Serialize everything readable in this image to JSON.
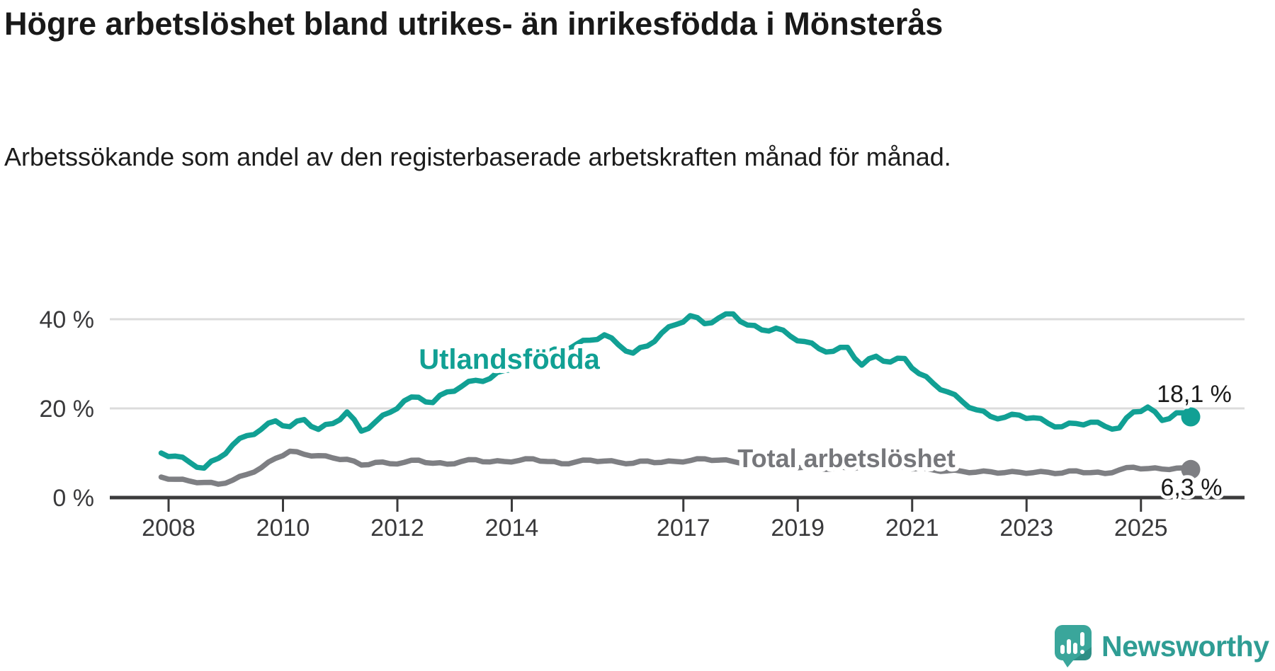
{
  "header": {
    "title": "Högre arbetslöshet bland utrikes- än inrikesfödda i Mönsterås",
    "subtitle": "Arbetssökande som andel av den registerbaserade arbetskraften månad för månad."
  },
  "chart_data": {
    "type": "line",
    "x_start": 2007.87,
    "x_step": 0.25,
    "xlim": [
      2007.6,
      2026.2
    ],
    "ylim": [
      0,
      43
    ],
    "grid": "horizontal",
    "x_ticks": [
      {
        "x": 2008,
        "label": "2008"
      },
      {
        "x": 2010,
        "label": "2010"
      },
      {
        "x": 2012,
        "label": "2012"
      },
      {
        "x": 2014,
        "label": "2014"
      },
      {
        "x": 2017,
        "label": "2017"
      },
      {
        "x": 2019,
        "label": "2019"
      },
      {
        "x": 2021,
        "label": "2021"
      },
      {
        "x": 2023,
        "label": "2023"
      },
      {
        "x": 2025,
        "label": "2025"
      }
    ],
    "y_ticks": [
      {
        "v": 0,
        "label": "0 %"
      },
      {
        "v": 20,
        "label": "20 %"
      },
      {
        "v": 40,
        "label": "40 %"
      }
    ],
    "series": [
      {
        "name": "Utlandsfödda",
        "color": "#11A094",
        "end_label": "18,1 %",
        "end_value": 18.1,
        "values": [
          10.0,
          9.3,
          7.9,
          6.6,
          8.8,
          11.8,
          13.9,
          15.3,
          17.2,
          15.9,
          17.5,
          15.3,
          16.6,
          19.2,
          14.9,
          17.0,
          19.1,
          21.7,
          22.5,
          21.3,
          23.7,
          24.9,
          26.3,
          26.7,
          28.5,
          29.7,
          30.4,
          32.5,
          33.2,
          34.3,
          35.3,
          36.5,
          34.2,
          32.4,
          34.0,
          36.9,
          38.8,
          40.8,
          39.0,
          40.3,
          41.2,
          38.7,
          37.6,
          38.0,
          36.2,
          35.0,
          33.4,
          32.8,
          33.7,
          29.7,
          31.7,
          30.4,
          31.2,
          27.8,
          25.6,
          23.7,
          21.6,
          19.7,
          18.2,
          18.0,
          18.5,
          17.9,
          16.7,
          15.9,
          16.6,
          16.9,
          16.0,
          15.6,
          19.2,
          20.3,
          17.3,
          19.0,
          18.1
        ]
      },
      {
        "name": "Total arbetslöshet",
        "color": "#7E7F83",
        "end_label": "6,3 %",
        "end_value": 6.3,
        "values": [
          4.6,
          4.1,
          3.7,
          3.4,
          3.0,
          3.9,
          5.2,
          6.7,
          8.8,
          10.4,
          9.7,
          9.4,
          8.9,
          8.6,
          7.3,
          7.9,
          7.6,
          7.9,
          8.4,
          7.7,
          7.5,
          8.1,
          8.5,
          8.0,
          8.1,
          8.3,
          8.7,
          8.1,
          7.6,
          8.0,
          8.4,
          8.2,
          7.9,
          7.7,
          8.2,
          7.9,
          8.1,
          8.3,
          8.7,
          8.4,
          8.1,
          7.8,
          7.5,
          7.3,
          7.0,
          6.8,
          6.6,
          6.5,
          6.7,
          6.9,
          7.2,
          7.0,
          6.8,
          6.5,
          6.2,
          6.0,
          5.9,
          5.7,
          5.8,
          5.6,
          5.7,
          5.6,
          5.7,
          5.5,
          6.0,
          5.6,
          5.4,
          6.2,
          6.8,
          6.5,
          6.4,
          6.6,
          6.3
        ]
      }
    ]
  },
  "colors": {
    "series0": "#11A094",
    "series1": "#7E7F83",
    "grid": "#dcdcdc",
    "axis": "#3b3b3c",
    "tick_text": "#39393b",
    "logo_teal": "#3AA69B",
    "logo_fold": "#2E8F86",
    "logo_text": "#2F9D94"
  },
  "footer": {
    "brand": "Newsworthy"
  }
}
